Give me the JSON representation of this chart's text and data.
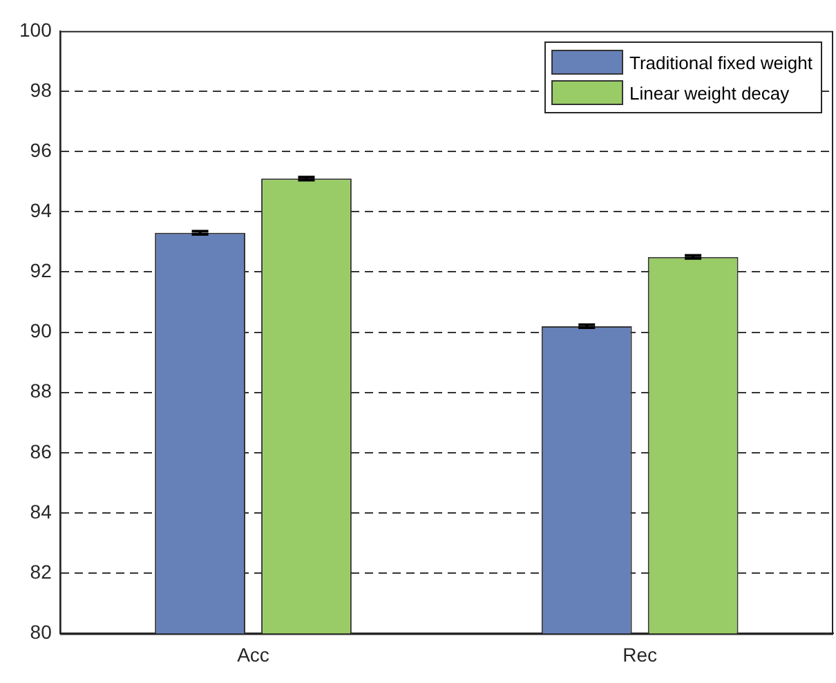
{
  "chart_data": {
    "type": "bar",
    "categories": [
      "Acc",
      "Rec"
    ],
    "series": [
      {
        "name": "Traditional fixed weight",
        "color": "#6680b8",
        "values": [
          93.3,
          90.2
        ],
        "errors": [
          0.05,
          0.05
        ]
      },
      {
        "name": "Linear weight decay",
        "color": "#99cc66",
        "values": [
          95.1,
          92.5
        ],
        "errors": [
          0.05,
          0.05
        ]
      }
    ],
    "ylim": [
      80,
      100
    ],
    "yticks": [
      80,
      82,
      84,
      86,
      88,
      90,
      92,
      94,
      96,
      98,
      100
    ],
    "grid": "y",
    "legend": "top right"
  }
}
